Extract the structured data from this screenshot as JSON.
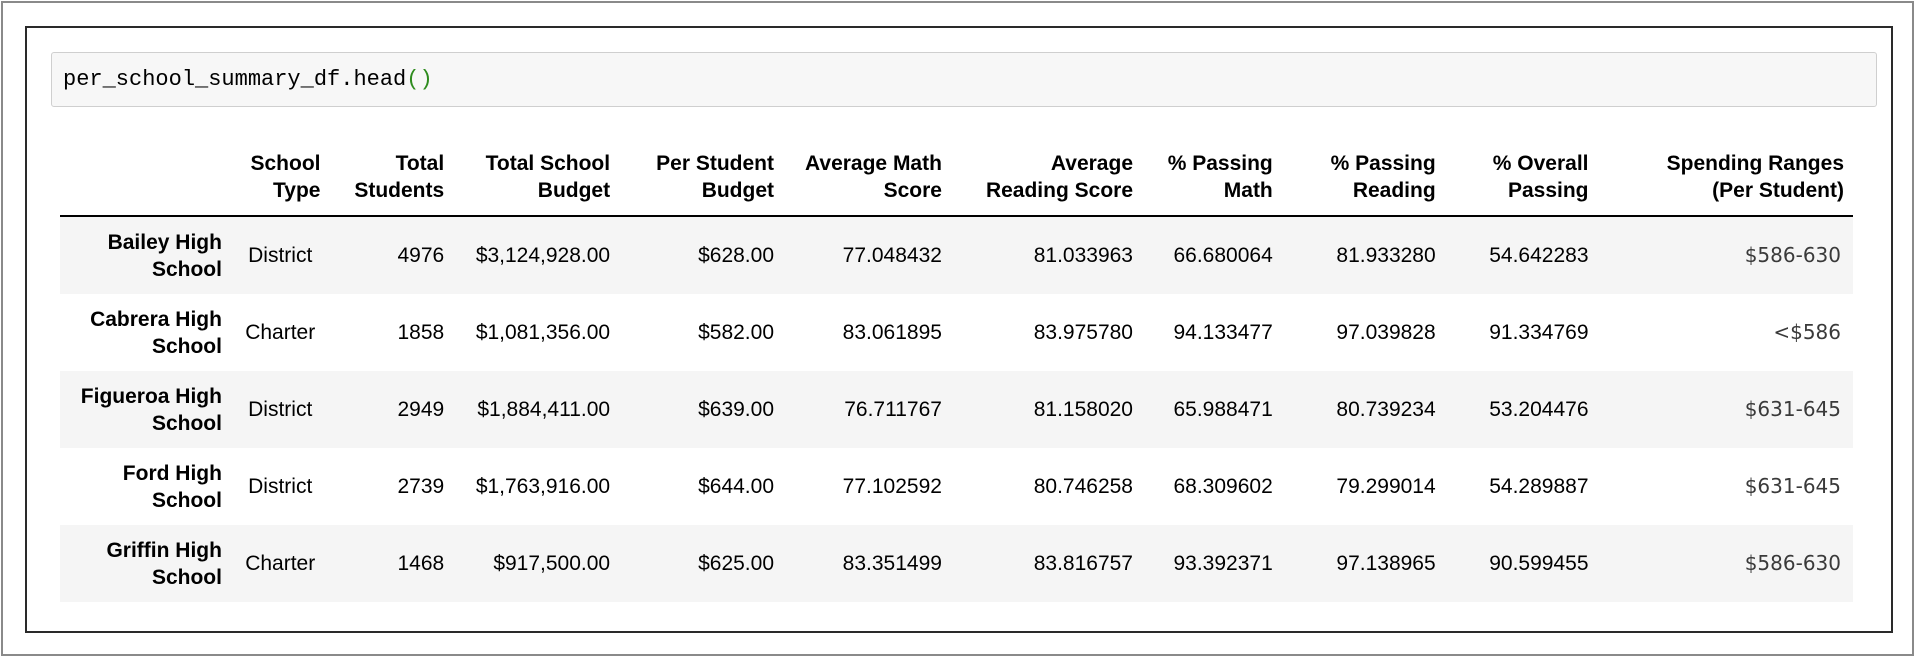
{
  "code_cell": {
    "code_name": "per_school_summary_df.head",
    "code_parens": "()"
  },
  "table": {
    "headers": [
      {
        "line1": "",
        "line2": ""
      },
      {
        "line1": "School",
        "line2": "Type"
      },
      {
        "line1": "Total",
        "line2": "Students"
      },
      {
        "line1": "Total School",
        "line2": "Budget"
      },
      {
        "line1": "Per Student",
        "line2": "Budget"
      },
      {
        "line1": "Average Math",
        "line2": "Score"
      },
      {
        "line1": "Average",
        "line2": "Reading Score"
      },
      {
        "line1": "% Passing",
        "line2": "Math"
      },
      {
        "line1": "% Passing",
        "line2": "Reading"
      },
      {
        "line1": "% Overall",
        "line2": "Passing"
      },
      {
        "line1": "Spending Ranges",
        "line2": "(Per Student)"
      }
    ],
    "rows": [
      {
        "name1": "Bailey High",
        "name2": "School",
        "type": "District",
        "students": "4976",
        "budget": "$3,124,928.00",
        "per_student": "$628.00",
        "math": "77.048432",
        "reading": "81.033963",
        "pass_math": "66.680064",
        "pass_reading": "81.933280",
        "overall": "54.642283",
        "range": "$586-630"
      },
      {
        "name1": "Cabrera High",
        "name2": "School",
        "type": "Charter",
        "students": "1858",
        "budget": "$1,081,356.00",
        "per_student": "$582.00",
        "math": "83.061895",
        "reading": "83.975780",
        "pass_math": "94.133477",
        "pass_reading": "97.039828",
        "overall": "91.334769",
        "range": "<$586"
      },
      {
        "name1": "Figueroa High",
        "name2": "School",
        "type": "District",
        "students": "2949",
        "budget": "$1,884,411.00",
        "per_student": "$639.00",
        "math": "76.711767",
        "reading": "81.158020",
        "pass_math": "65.988471",
        "pass_reading": "80.739234",
        "overall": "53.204476",
        "range": "$631-645"
      },
      {
        "name1": "Ford High",
        "name2": "School",
        "type": "District",
        "students": "2739",
        "budget": "$1,763,916.00",
        "per_student": "$644.00",
        "math": "77.102592",
        "reading": "80.746258",
        "pass_math": "68.309602",
        "pass_reading": "79.299014",
        "overall": "54.289887",
        "range": "$631-645"
      },
      {
        "name1": "Griffin High",
        "name2": "School",
        "type": "Charter",
        "students": "1468",
        "budget": "$917,500.00",
        "per_student": "$625.00",
        "math": "83.351499",
        "reading": "83.816757",
        "pass_math": "93.392371",
        "pass_reading": "97.138965",
        "overall": "90.599455",
        "range": "$586-630"
      }
    ]
  },
  "colors": {
    "paren_green": "#2e8b1e",
    "row_stripe": "#f5f5f5",
    "code_bg": "#f7f7f7"
  }
}
